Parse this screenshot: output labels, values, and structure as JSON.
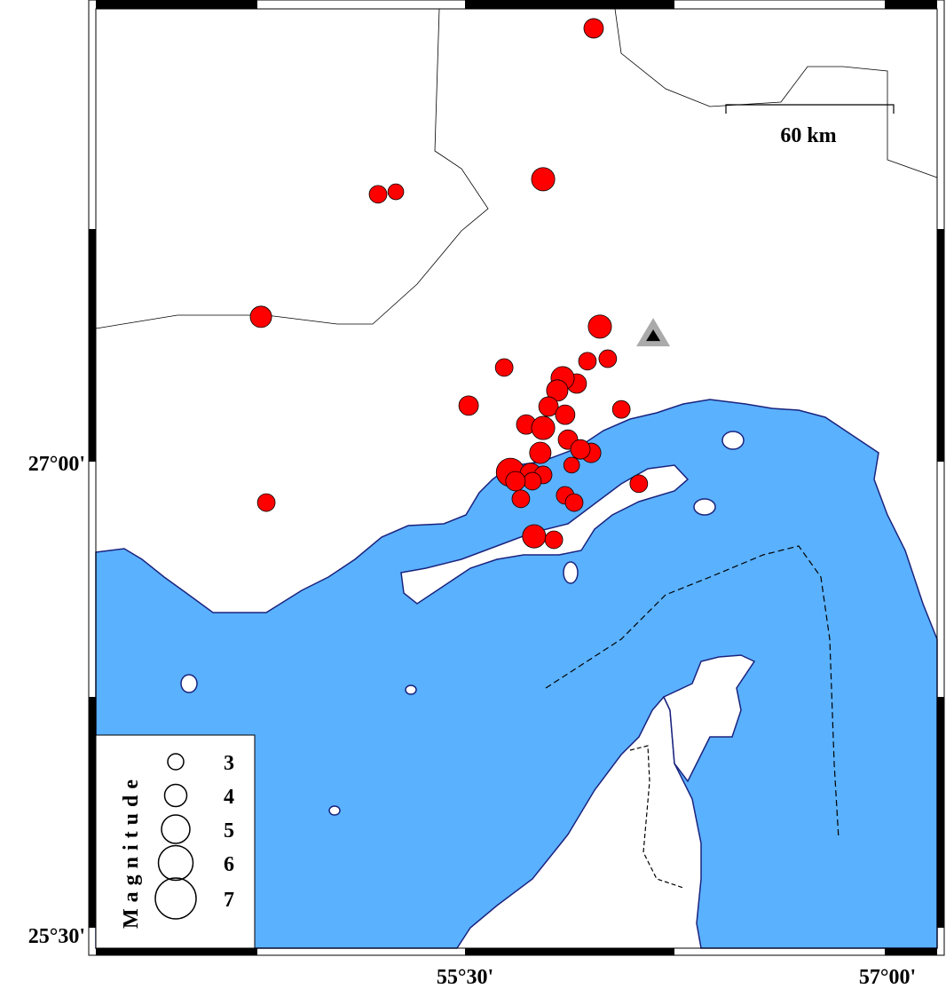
{
  "map": {
    "colors": {
      "sea": "#5ab1fd",
      "land": "#ffffff",
      "coast": "#1a237e",
      "event": "#ff0000",
      "station": "#000000",
      "station_halo": "#aaaaaa"
    },
    "axis_labels": {
      "lat_27": "27°00'",
      "lat_25_30": "25°30'",
      "lon_55_30": "55°30'",
      "lon_57": "57°00'"
    },
    "scale_bar": {
      "label": "60 km"
    },
    "legend": {
      "title": "Magnitude",
      "items": [
        {
          "label": "3",
          "mag": 3
        },
        {
          "label": "4",
          "mag": 4
        },
        {
          "label": "5",
          "mag": 5
        },
        {
          "label": "6",
          "mag": 6
        },
        {
          "label": "7",
          "mag": 7
        }
      ]
    },
    "station": {
      "lon": 56.17,
      "lat": 27.4,
      "symbol": "triangle"
    },
    "events": [
      {
        "lon": 55.959,
        "lat": 28.376,
        "mag": 3.0
      },
      {
        "lon": 55.78,
        "lat": 27.897,
        "mag": 3.6
      },
      {
        "lon": 55.195,
        "lat": 27.849,
        "mag": 2.7
      },
      {
        "lon": 55.258,
        "lat": 27.857,
        "mag": 2.4
      },
      {
        "lon": 54.78,
        "lat": 27.46,
        "mag": 3.3
      },
      {
        "lon": 55.981,
        "lat": 27.429,
        "mag": 3.6
      },
      {
        "lon": 55.642,
        "lat": 27.299,
        "mag": 2.7
      },
      {
        "lon": 56.009,
        "lat": 27.327,
        "mag": 2.7
      },
      {
        "lon": 55.937,
        "lat": 27.319,
        "mag": 2.7
      },
      {
        "lon": 55.516,
        "lat": 27.178,
        "mag": 3.0
      },
      {
        "lon": 56.057,
        "lat": 27.166,
        "mag": 2.7
      },
      {
        "lon": 55.899,
        "lat": 27.248,
        "mag": 3.0
      },
      {
        "lon": 55.849,
        "lat": 27.265,
        "mag": 3.6
      },
      {
        "lon": 55.83,
        "lat": 27.226,
        "mag": 3.3
      },
      {
        "lon": 55.799,
        "lat": 27.175,
        "mag": 3.0
      },
      {
        "lon": 55.858,
        "lat": 27.149,
        "mag": 3.0
      },
      {
        "lon": 55.72,
        "lat": 27.118,
        "mag": 3.0
      },
      {
        "lon": 55.78,
        "lat": 27.107,
        "mag": 3.6
      },
      {
        "lon": 55.868,
        "lat": 27.07,
        "mag": 3.0
      },
      {
        "lon": 55.95,
        "lat": 27.028,
        "mag": 3.0
      },
      {
        "lon": 55.912,
        "lat": 27.039,
        "mag": 3.0
      },
      {
        "lon": 55.77,
        "lat": 27.028,
        "mag": 3.3
      },
      {
        "lon": 55.881,
        "lat": 26.989,
        "mag": 2.4
      },
      {
        "lon": 55.664,
        "lat": 26.966,
        "mag": 4.4
      },
      {
        "lon": 55.736,
        "lat": 26.961,
        "mag": 3.3
      },
      {
        "lon": 55.78,
        "lat": 26.958,
        "mag": 2.7
      },
      {
        "lon": 55.742,
        "lat": 26.938,
        "mag": 2.7
      },
      {
        "lon": 55.682,
        "lat": 26.938,
        "mag": 3.0
      },
      {
        "lon": 56.119,
        "lat": 26.93,
        "mag": 2.7
      },
      {
        "lon": 55.858,
        "lat": 26.893,
        "mag": 2.7
      },
      {
        "lon": 55.89,
        "lat": 26.87,
        "mag": 2.7
      },
      {
        "lon": 55.701,
        "lat": 26.882,
        "mag": 2.7
      },
      {
        "lon": 54.799,
        "lat": 26.87,
        "mag": 2.7
      },
      {
        "lon": 55.748,
        "lat": 26.763,
        "mag": 3.6
      },
      {
        "lon": 55.818,
        "lat": 26.752,
        "mag": 2.7
      }
    ]
  }
}
